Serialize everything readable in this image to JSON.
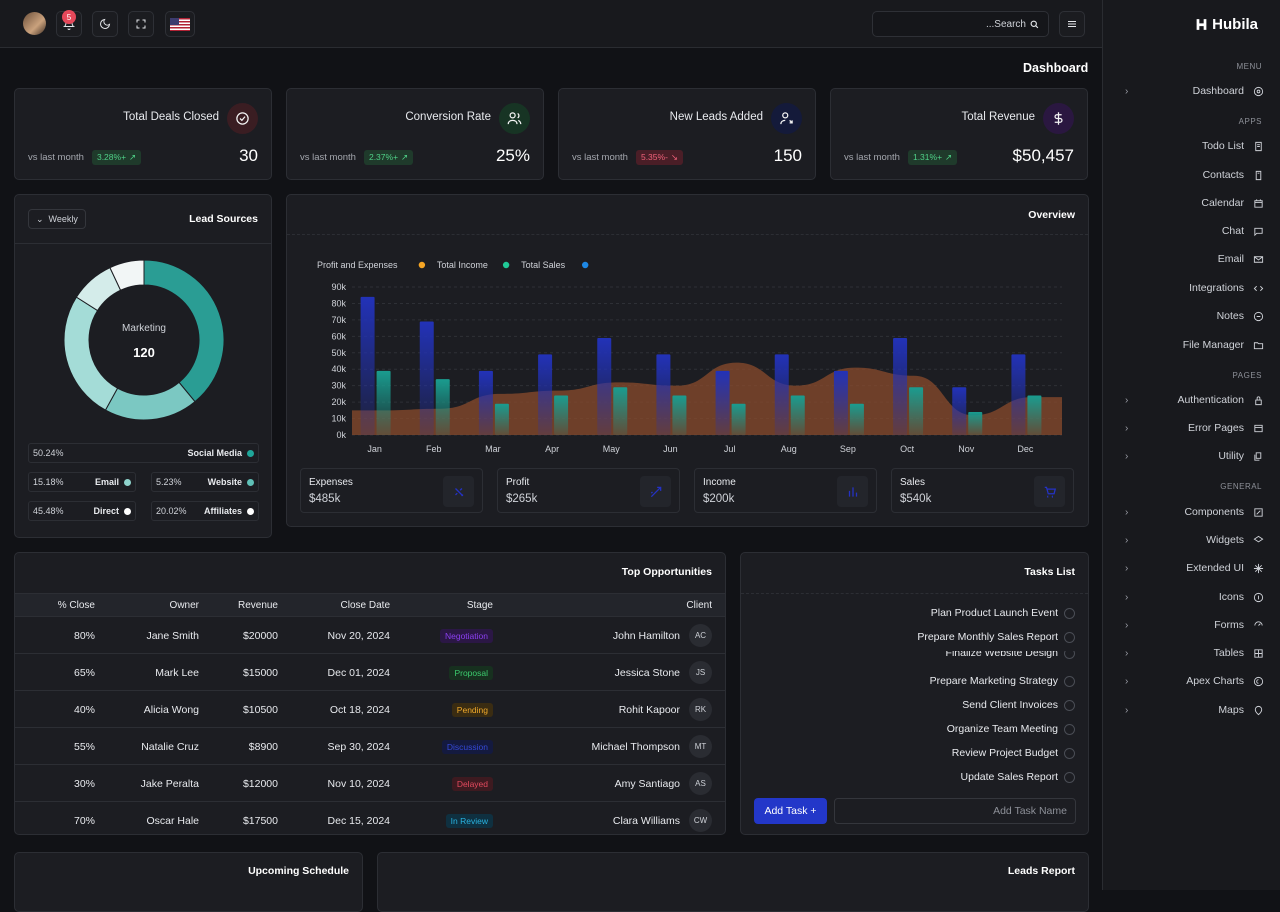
{
  "topbar": {
    "notif_count": "5",
    "search_placeholder": "...Search"
  },
  "page": {
    "title": "Dashboard"
  },
  "brand": {
    "name": "Hubila"
  },
  "sidebar": {
    "menu_caption": "MENU",
    "apps_caption": "APPS",
    "pages_caption": "PAGES",
    "general_caption": "GENERAL",
    "dashboard": "Dashboard",
    "apps": [
      "Todo List",
      "Contacts",
      "Calendar",
      "Chat",
      "Email",
      "Integrations",
      "Notes",
      "File Manager"
    ],
    "pages": [
      "Authentication",
      "Error Pages",
      "Utility"
    ],
    "general": [
      "Components",
      "Widgets",
      "Extended UI",
      "Icons",
      "Forms",
      "Tables",
      "Apex Charts",
      "Maps"
    ]
  },
  "stats": [
    {
      "title": "Total Deals Closed",
      "sub": "vs last month",
      "pill": "3.28%+",
      "trend": "up",
      "value": "30",
      "icon_bg": "#3a1d22",
      "icon_color": "#f4f4f4"
    },
    {
      "title": "Conversion Rate",
      "sub": "vs last month",
      "pill": "2.37%+",
      "trend": "up",
      "value": "25%",
      "icon_bg": "#173424",
      "icon_color": "#f4f4f4"
    },
    {
      "title": "New Leads Added",
      "sub": "vs last month",
      "pill": "5.35%-",
      "trend": "down",
      "value": "150",
      "icon_bg": "#141a3a",
      "icon_color": "#f4f4f4"
    },
    {
      "title": "Total Revenue",
      "sub": "vs last month",
      "pill": "1.31%+",
      "trend": "up",
      "value": "$50,457",
      "icon_bg": "#2a1740",
      "icon_color": "#f4f4f4"
    }
  ],
  "lead_sources": {
    "title": "Lead Sources",
    "filter": "Weekly",
    "center_label": "Marketing",
    "center_value": "120",
    "rows": [
      {
        "pct": "50.24%",
        "name": "Social Media",
        "color": "#1fa69a"
      },
      {
        "pct": "15.18%",
        "name": "Email",
        "color": "#8fd3cc"
      },
      {
        "pct": "5.23%",
        "name": "Website",
        "color": "#5fc0b7"
      },
      {
        "pct": "45.48%",
        "name": "Direct",
        "color": "#ffffff"
      },
      {
        "pct": "20.02%",
        "name": "Affiliates",
        "color": "#ffffff"
      }
    ]
  },
  "overview": {
    "title": "Overview",
    "minis": [
      {
        "label": "Expenses",
        "value": "$485k",
        "color": "#2432c4"
      },
      {
        "label": "Profit",
        "value": "$265k",
        "color": "#2432c4"
      },
      {
        "label": "Income",
        "value": "$200k",
        "color": "#2432c4"
      },
      {
        "label": "Sales",
        "value": "$540k",
        "color": "#2432c4"
      }
    ]
  },
  "chart_data": {
    "type": "bar",
    "title": "Overview",
    "categories": [
      "Jan",
      "Feb",
      "Mar",
      "Apr",
      "May",
      "Jun",
      "Jul",
      "Aug",
      "Sep",
      "Oct",
      "Nov",
      "Dec"
    ],
    "ylim": [
      0,
      90000
    ],
    "yticks": [
      "0k",
      "10k",
      "20k",
      "30k",
      "40k",
      "50k",
      "60k",
      "70k",
      "80k",
      "90k"
    ],
    "legend": [
      "Profit and Expenses",
      "Total Income",
      "Total Sales"
    ],
    "legend_colors": [
      "#f5a524",
      "#20c997",
      "#1e88e5"
    ],
    "series": [
      {
        "name": "Profit and Expenses",
        "type": "area",
        "color": "#8a4b2c",
        "values": [
          15000,
          16000,
          25000,
          27000,
          32000,
          30000,
          44000,
          30000,
          41000,
          36000,
          12000,
          23000
        ]
      },
      {
        "name": "Total Income",
        "type": "bar",
        "color": "#1a9c8f",
        "values": [
          39000,
          34000,
          19000,
          24000,
          29000,
          24000,
          19000,
          24000,
          19000,
          29000,
          14000,
          24000
        ]
      },
      {
        "name": "Total Sales",
        "type": "bar",
        "color": "#2232b8",
        "values": [
          84000,
          69000,
          39000,
          49000,
          59000,
          49000,
          39000,
          49000,
          39000,
          59000,
          29000,
          49000
        ]
      }
    ]
  },
  "opportunities": {
    "title": "Top Opportunities",
    "headers": [
      "% Close",
      "Owner",
      "Revenue",
      "Close Date",
      "Stage",
      "Client"
    ],
    "rows": [
      {
        "close": "80%",
        "owner": "Jane Smith",
        "revenue": "$20000",
        "date": "Nov 20, 2024",
        "stage": "Negotiation",
        "stage_bg": "#2b1745",
        "stage_fg": "#8b3ff0",
        "client": "John Hamilton",
        "initials": "AC"
      },
      {
        "close": "65%",
        "owner": "Mark Lee",
        "revenue": "$15000",
        "date": "Dec 01, 2024",
        "stage": "Proposal",
        "stage_bg": "#17301f",
        "stage_fg": "#3ccb6e",
        "client": "Jessica Stone",
        "initials": "JS"
      },
      {
        "close": "40%",
        "owner": "Alicia Wong",
        "revenue": "$10500",
        "date": "Oct 18, 2024",
        "stage": "Pending",
        "stage_bg": "#3a2c12",
        "stage_fg": "#f0a92a",
        "client": "Rohit Kapoor",
        "initials": "RK"
      },
      {
        "close": "55%",
        "owner": "Natalie Cruz",
        "revenue": "$8900",
        "date": "Sep 30, 2024",
        "stage": "Discussion",
        "stage_bg": "#141a3f",
        "stage_fg": "#3548d8",
        "client": "Michael Thompson",
        "initials": "MT"
      },
      {
        "close": "30%",
        "owner": "Jake Peralta",
        "revenue": "$12000",
        "date": "Nov 10, 2024",
        "stage": "Delayed",
        "stage_bg": "#3d1a20",
        "stage_fg": "#e24a5e",
        "client": "Amy Santiago",
        "initials": "AS"
      },
      {
        "close": "70%",
        "owner": "Oscar Hale",
        "revenue": "$17500",
        "date": "Dec 15, 2024",
        "stage": "In Review",
        "stage_bg": "#0f3040",
        "stage_fg": "#29b3e0",
        "client": "Clara Williams",
        "initials": "CW"
      }
    ]
  },
  "tasks": {
    "title": "Tasks List",
    "items": [
      "Plan Product Launch Event",
      "Prepare Monthly Sales Report",
      "Finalize Website Design",
      "Prepare Marketing Strategy",
      "Send Client Invoices",
      "Organize Team Meeting",
      "Review Project Budget",
      "Update Sales Report"
    ],
    "add_label": "Add Task +",
    "input_placeholder": "Add Task Name"
  },
  "schedule": {
    "title": "Upcoming Schedule"
  },
  "leads_report": {
    "title": "Leads Report"
  }
}
